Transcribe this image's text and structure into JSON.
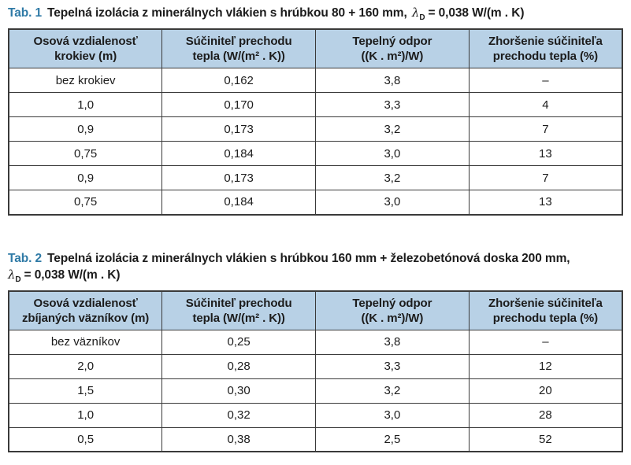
{
  "colors": {
    "accent": "#2F7AA6",
    "header_bg": "#B8D1E6",
    "border": "#3A3A3A",
    "text": "#1C1C1C"
  },
  "table1": {
    "label": "Tab. 1",
    "title": "Tepelná izolácia z minerálnych vlákien s hrúbkou 80 + 160 mm,",
    "lambda_symbol": "λ",
    "lambda_sub": "D",
    "lambda_value": "= 0,038 W/(m . K)",
    "headers": [
      "Osová vzdialenosť krokiev (m)",
      "Súčiniteľ prechodu tepla (W/(m² . K))",
      "Tepelný odpor ((K . m²)/W)",
      "Zhoršenie súčiniteľa prechodu tepla (%)"
    ],
    "rows": [
      [
        "bez krokiev",
        "0,162",
        "3,8",
        "–"
      ],
      [
        "1,0",
        "0,170",
        "3,3",
        "4"
      ],
      [
        "0,9",
        "0,173",
        "3,2",
        "7"
      ],
      [
        "0,75",
        "0,184",
        "3,0",
        "13"
      ],
      [
        "0,9",
        "0,173",
        "3,2",
        "7"
      ],
      [
        "0,75",
        "0,184",
        "3,0",
        "13"
      ]
    ]
  },
  "table2": {
    "label": "Tab. 2",
    "title": "Tepelná izolácia z minerálnych vlákien s hrúbkou 160 mm + železobetónová doska 200 mm,",
    "lambda_symbol": "λ",
    "lambda_sub": "D",
    "lambda_value": "= 0,038 W/(m . K)",
    "headers": [
      "Osová vzdialenosť zbíjaných väzníkov (m)",
      "Súčiniteľ prechodu tepla (W/(m² . K))",
      "Tepelný odpor ((K . m²)/W)",
      "Zhoršenie súčiniteľa prechodu tepla (%)"
    ],
    "rows": [
      [
        "bez väzníkov",
        "0,25",
        "3,8",
        "–"
      ],
      [
        "2,0",
        "0,28",
        "3,3",
        "12"
      ],
      [
        "1,5",
        "0,30",
        "3,2",
        "20"
      ],
      [
        "1,0",
        "0,32",
        "3,0",
        "28"
      ],
      [
        "0,5",
        "0,38",
        "2,5",
        "52"
      ]
    ]
  }
}
